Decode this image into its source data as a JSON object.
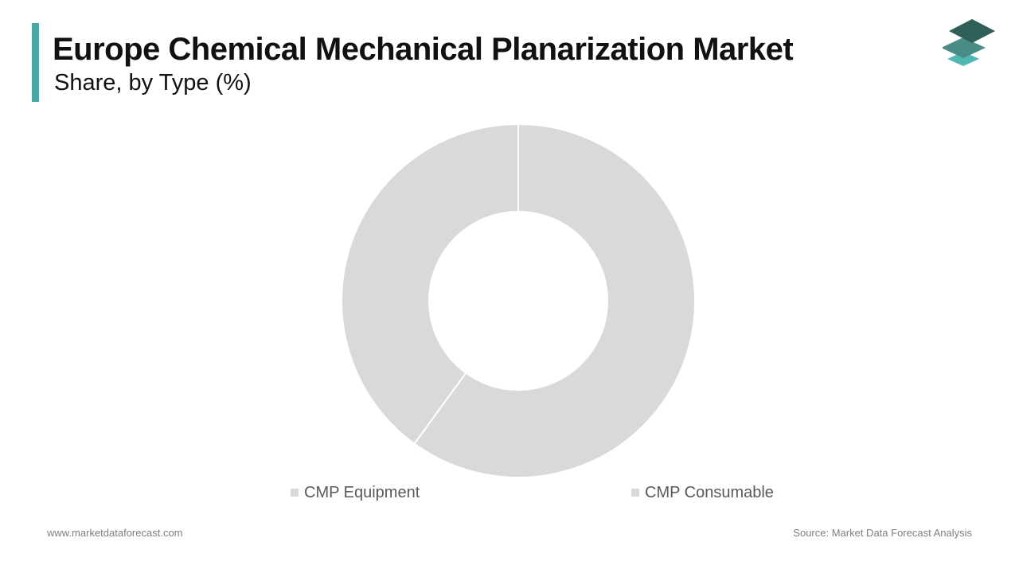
{
  "colors": {
    "accent": "#4aa9a6",
    "slice": "#d9d9d9",
    "slice_border": "#ffffff",
    "logo_top": "#2f5f58",
    "logo_mid": "#4a8c86",
    "logo_bottom": "#4fb8b2"
  },
  "logo": {
    "icon": "stacked-layers-icon"
  },
  "chart_data": {
    "type": "pie",
    "title": "Europe Chemical Mechanical Planarization Market",
    "subtitle": "Share, by Type (%)",
    "donut": true,
    "categories": [
      "CMP Equipment",
      "CMP Consumable"
    ],
    "values": [
      60,
      40
    ],
    "legend_position": "bottom"
  },
  "footer": {
    "website": "www.marketdataforecast.com",
    "source": "Source: Market Data Forecast Analysis"
  }
}
